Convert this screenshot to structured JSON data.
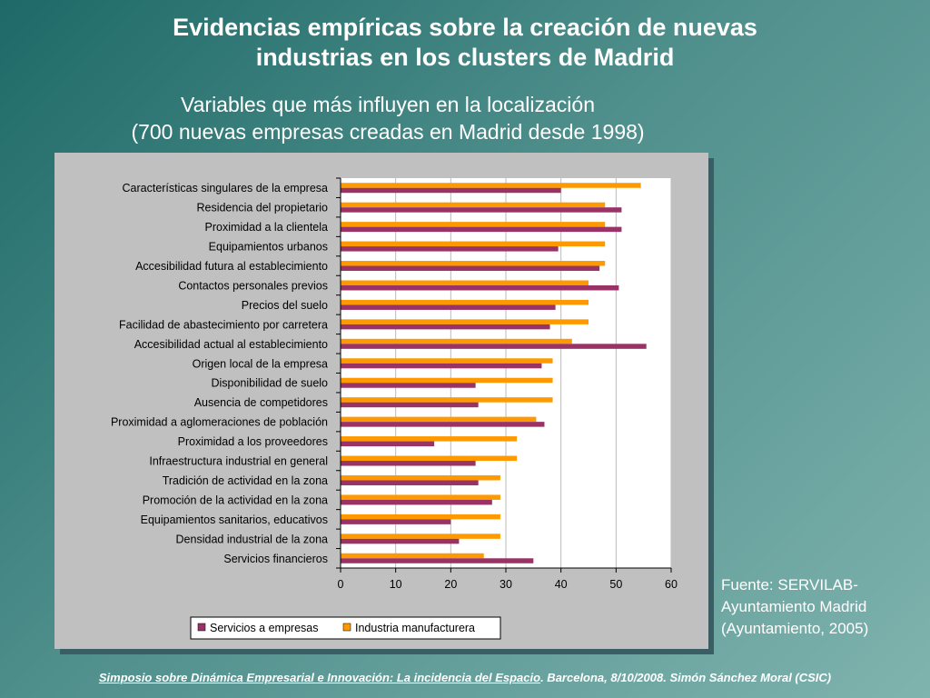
{
  "slide": {
    "title_line1": "Evidencias empíricas sobre la creación de nuevas",
    "title_line2": "industrias en los clusters de Madrid",
    "subtitle_line1": "Variables que más influyen en la localización",
    "subtitle_line2": "(700 nuevas empresas creadas en Madrid desde 1998)",
    "source_line1": "Fuente: SERVILAB-",
    "source_line2": "Ayuntamiento Madrid",
    "source_line3": "(Ayuntamiento, 2005)",
    "footer_event": "Simposio sobre Dinámica Empresarial e Innovación: La incidencia del Espacio",
    "footer_tail": ". Barcelona, 8/10/2008. Simón Sánchez Moral (CSIC)"
  },
  "chart_data": {
    "type": "bar",
    "orientation": "horizontal",
    "categories": [
      "Características singulares de la empresa",
      "Residencia del propietario",
      "Proximidad a la clientela",
      "Equipamientos urbanos",
      "Accesibilidad futura al establecimiento",
      "Contactos personales previos",
      "Precios del suelo",
      "Facilidad de abastecimiento por carretera",
      "Accesibilidad actual al establecimiento",
      "Origen local de la empresa",
      "Disponibilidad de suelo",
      "Ausencia de competidores",
      "Proximidad a aglomeraciones de población",
      "Proximidad a los proveedores",
      "Infraestructura industrial en general",
      "Tradición de actividad en la zona",
      "Promoción de la actividad en la zona",
      "Equipamientos sanitarios, educativos",
      "Densidad industrial de la zona",
      "Servicios financieros"
    ],
    "series": [
      {
        "name": "Servicios a empresas",
        "color": "#993366",
        "values": [
          40,
          51,
          51,
          39.5,
          47,
          50.5,
          39,
          38,
          55.5,
          36.5,
          24.5,
          25,
          37,
          17,
          24.5,
          25,
          27.5,
          20,
          21.5,
          35
        ]
      },
      {
        "name": "Industria manufacturera",
        "color": "#ff9900",
        "values": [
          54.5,
          48,
          48,
          48,
          48,
          45,
          45,
          45,
          42,
          38.5,
          38.5,
          38.5,
          35.5,
          32,
          32,
          29,
          29,
          29,
          29,
          26
        ]
      }
    ],
    "xlim": [
      0,
      60
    ],
    "xticks": [
      0,
      10,
      20,
      30,
      40,
      50,
      60
    ],
    "grid": true,
    "legend": "bottom"
  }
}
